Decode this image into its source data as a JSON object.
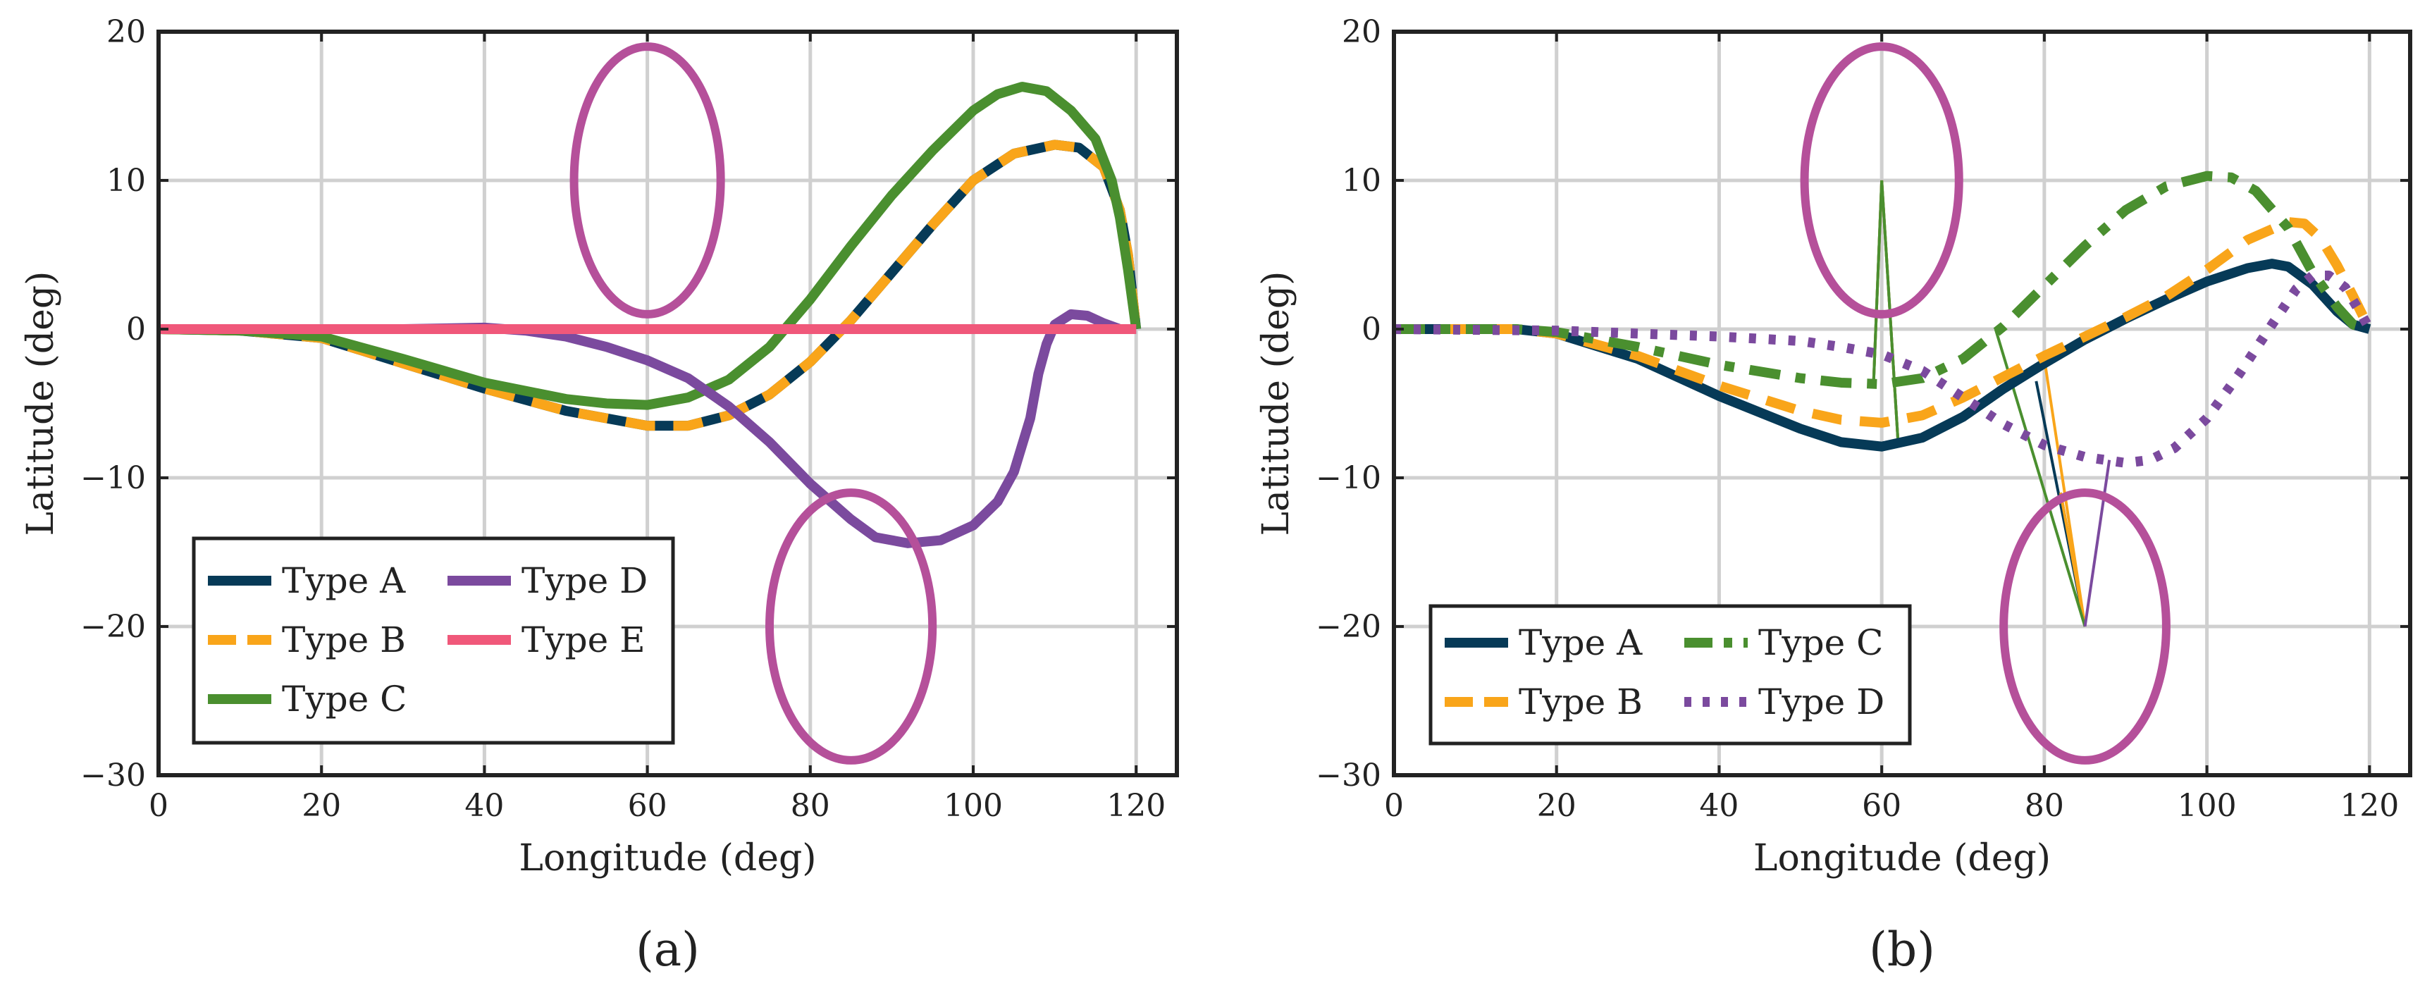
{
  "chart_data": [
    {
      "type": "line",
      "panel_label": "(a)",
      "xlabel": "Longitude (deg)",
      "ylabel": "Latitude (deg)",
      "xlim": [
        0,
        125
      ],
      "ylim": [
        -30,
        20
      ],
      "xticks": [
        0,
        20,
        40,
        60,
        80,
        100,
        120
      ],
      "yticks": [
        -30,
        -20,
        -10,
        0,
        10,
        20
      ],
      "xtick_labels": [
        "0",
        "20",
        "40",
        "60",
        "80",
        "100",
        "120"
      ],
      "ytick_labels": [
        "−30",
        "−20",
        "−10",
        "0",
        "10",
        "20"
      ],
      "grid": true,
      "legend": {
        "placement": "bottom-left",
        "columns": 2
      },
      "annotations": [
        {
          "shape": "ellipse",
          "center": [
            60,
            10
          ],
          "x_halfwidth": 9,
          "y_halfheight": 9,
          "color": "#B5509A"
        },
        {
          "shape": "ellipse",
          "center": [
            85,
            -20
          ],
          "x_halfwidth": 10,
          "y_halfheight": 9,
          "color": "#B5509A"
        }
      ],
      "series": [
        {
          "name": "Type A",
          "style": "solid",
          "color": "#063A57",
          "x": [
            0,
            10,
            20,
            30,
            40,
            50,
            60,
            65,
            70,
            75,
            80,
            85,
            90,
            95,
            100,
            105,
            110,
            113,
            116,
            118,
            119,
            120
          ],
          "y": [
            0,
            -0.1,
            -0.6,
            -2.3,
            -4.0,
            -5.5,
            -6.5,
            -6.5,
            -5.8,
            -4.4,
            -2.2,
            0.6,
            3.8,
            7.0,
            10.0,
            11.8,
            12.4,
            12.2,
            10.9,
            8.0,
            5.0,
            0
          ]
        },
        {
          "name": "Type B",
          "style": "dashed",
          "color": "#F9A51A",
          "x": [
            0,
            10,
            20,
            30,
            40,
            50,
            60,
            65,
            70,
            75,
            80,
            85,
            90,
            95,
            100,
            105,
            110,
            113,
            116,
            118,
            119,
            120
          ],
          "y": [
            0,
            -0.1,
            -0.6,
            -2.3,
            -4.0,
            -5.5,
            -6.5,
            -6.5,
            -5.8,
            -4.4,
            -2.2,
            0.6,
            3.8,
            7.0,
            10.0,
            11.8,
            12.4,
            12.2,
            10.9,
            8.0,
            5.0,
            0
          ]
        },
        {
          "name": "Type C",
          "style": "solid",
          "color": "#4A8F2F",
          "x": [
            0,
            10,
            20,
            30,
            40,
            50,
            55,
            60,
            65,
            70,
            75,
            80,
            85,
            90,
            95,
            100,
            103,
            106,
            109,
            112,
            115,
            117,
            118,
            119,
            120
          ],
          "y": [
            0,
            -0.1,
            -0.5,
            -2.0,
            -3.6,
            -4.7,
            -5.0,
            -5.1,
            -4.6,
            -3.4,
            -1.2,
            2.0,
            5.6,
            9.0,
            12.0,
            14.7,
            15.8,
            16.3,
            16.0,
            14.7,
            12.8,
            10.0,
            7.5,
            4.0,
            0
          ]
        },
        {
          "name": "Type D",
          "style": "solid",
          "color": "#7B4A9E",
          "x": [
            0,
            20,
            30,
            40,
            45,
            50,
            55,
            60,
            65,
            70,
            75,
            80,
            85,
            88,
            92,
            96,
            100,
            103,
            105,
            107,
            108,
            109,
            110,
            112,
            114,
            116,
            118,
            120
          ],
          "y": [
            0,
            0,
            0,
            0.1,
            -0.1,
            -0.5,
            -1.2,
            -2.1,
            -3.3,
            -5.2,
            -7.6,
            -10.4,
            -12.8,
            -14.0,
            -14.4,
            -14.2,
            -13.2,
            -11.6,
            -9.6,
            -6.0,
            -3.0,
            -1.0,
            0.3,
            1.0,
            0.9,
            0.4,
            0,
            0
          ]
        },
        {
          "name": "Type E",
          "style": "solid",
          "color": "#F0587A",
          "x": [
            0,
            120
          ],
          "y": [
            0,
            0
          ]
        }
      ]
    },
    {
      "type": "line",
      "panel_label": "(b)",
      "xlabel": "Longitude (deg)",
      "ylabel": "Latitude (deg)",
      "xlim": [
        0,
        125
      ],
      "ylim": [
        -30,
        20
      ],
      "xticks": [
        0,
        20,
        40,
        60,
        80,
        100,
        120
      ],
      "yticks": [
        -30,
        -20,
        -10,
        0,
        10,
        20
      ],
      "xtick_labels": [
        "0",
        "20",
        "40",
        "60",
        "80",
        "100",
        "120"
      ],
      "ytick_labels": [
        "−30",
        "−20",
        "−10",
        "0",
        "10",
        "20"
      ],
      "grid": true,
      "legend": {
        "placement": "bottom-left",
        "columns": 2
      },
      "annotations": [
        {
          "shape": "ellipse",
          "center": [
            60,
            10
          ],
          "x_halfwidth": 9.5,
          "y_halfheight": 9,
          "color": "#B5509A"
        },
        {
          "shape": "ellipse",
          "center": [
            85,
            -20
          ],
          "x_halfwidth": 10,
          "y_halfheight": 9,
          "color": "#B5509A"
        }
      ],
      "series": [
        {
          "name": "Type A",
          "style": "solid",
          "color": "#063A57",
          "x": [
            0,
            15,
            20,
            30,
            40,
            50,
            55,
            60,
            65,
            70,
            75,
            80,
            85,
            90,
            95,
            100,
            105,
            108,
            110,
            113,
            116,
            118,
            120
          ],
          "y": [
            0,
            0,
            -0.3,
            -2.0,
            -4.5,
            -6.7,
            -7.6,
            -7.9,
            -7.3,
            -5.9,
            -4.0,
            -2.3,
            -0.7,
            0.7,
            2.0,
            3.2,
            4.1,
            4.4,
            4.2,
            3.0,
            1.2,
            0.3,
            0
          ]
        },
        {
          "name": "Type B",
          "style": "dashed",
          "color": "#F9A51A",
          "x": [
            0,
            15,
            20,
            30,
            40,
            50,
            55,
            60,
            65,
            70,
            75,
            80,
            85,
            90,
            95,
            100,
            105,
            110,
            112,
            114,
            116,
            118,
            120
          ],
          "y": [
            0,
            0,
            -0.3,
            -1.8,
            -3.8,
            -5.5,
            -6.1,
            -6.3,
            -5.8,
            -4.6,
            -3.2,
            -1.8,
            -0.5,
            0.8,
            2.2,
            4.0,
            6.0,
            7.2,
            7.1,
            6.1,
            4.3,
            2.2,
            0
          ]
        },
        {
          "name": "Type C",
          "style": "dashdot",
          "color": "#4A8F2F",
          "x": [
            0,
            15,
            20,
            30,
            40,
            50,
            55,
            60,
            65,
            70,
            75,
            80,
            85,
            90,
            95,
            100,
            103,
            106,
            110,
            113,
            116,
            118,
            120
          ],
          "y": [
            0,
            0,
            -0.2,
            -1.2,
            -2.4,
            -3.3,
            -3.6,
            -3.7,
            -3.3,
            -2.0,
            0.2,
            2.9,
            5.6,
            8.0,
            9.6,
            10.3,
            10.2,
            9.3,
            6.8,
            3.8,
            1.5,
            0.3,
            0
          ]
        },
        {
          "name": "Type D",
          "style": "dotted",
          "color": "#7B4A9E",
          "x": [
            0,
            20,
            30,
            40,
            50,
            55,
            60,
            65,
            70,
            75,
            80,
            85,
            90,
            93,
            96,
            100,
            104,
            108,
            111,
            113,
            115,
            117,
            119,
            120
          ],
          "y": [
            0,
            -0.1,
            -0.3,
            -0.5,
            -0.8,
            -1.2,
            -1.7,
            -2.8,
            -4.6,
            -6.4,
            -7.8,
            -8.6,
            -9.0,
            -8.8,
            -8.0,
            -6.0,
            -3.0,
            0.3,
            2.7,
            3.6,
            3.6,
            2.8,
            1.0,
            0
          ]
        }
      ],
      "spikes": [
        {
          "series": "Type A",
          "color": "#063A57",
          "x": [
            59,
            60,
            62
          ],
          "y": [
            -3.6,
            10,
            -7.5
          ]
        },
        {
          "series": "Type B",
          "color": "#F9A51A",
          "x": [
            59,
            60,
            62
          ],
          "y": [
            -3.6,
            10,
            -7.5
          ]
        },
        {
          "series": "Type C",
          "color": "#4A8F2F",
          "x": [
            59,
            60,
            62
          ],
          "y": [
            -3.6,
            10,
            -7.5
          ]
        },
        {
          "series": "Type A",
          "color": "#063A57",
          "x": [
            79,
            85,
            82
          ],
          "y": [
            -3.5,
            -20,
            -11
          ]
        },
        {
          "series": "Type B",
          "color": "#F9A51A",
          "x": [
            80,
            85,
            82
          ],
          "y": [
            -2,
            -20,
            -11
          ]
        },
        {
          "series": "Type C",
          "color": "#4A8F2F",
          "x": [
            74,
            85
          ],
          "y": [
            0,
            -20
          ]
        },
        {
          "series": "Type D",
          "color": "#7B4A9E",
          "x": [
            85,
            88
          ],
          "y": [
            -20,
            -8.8
          ]
        }
      ]
    }
  ]
}
